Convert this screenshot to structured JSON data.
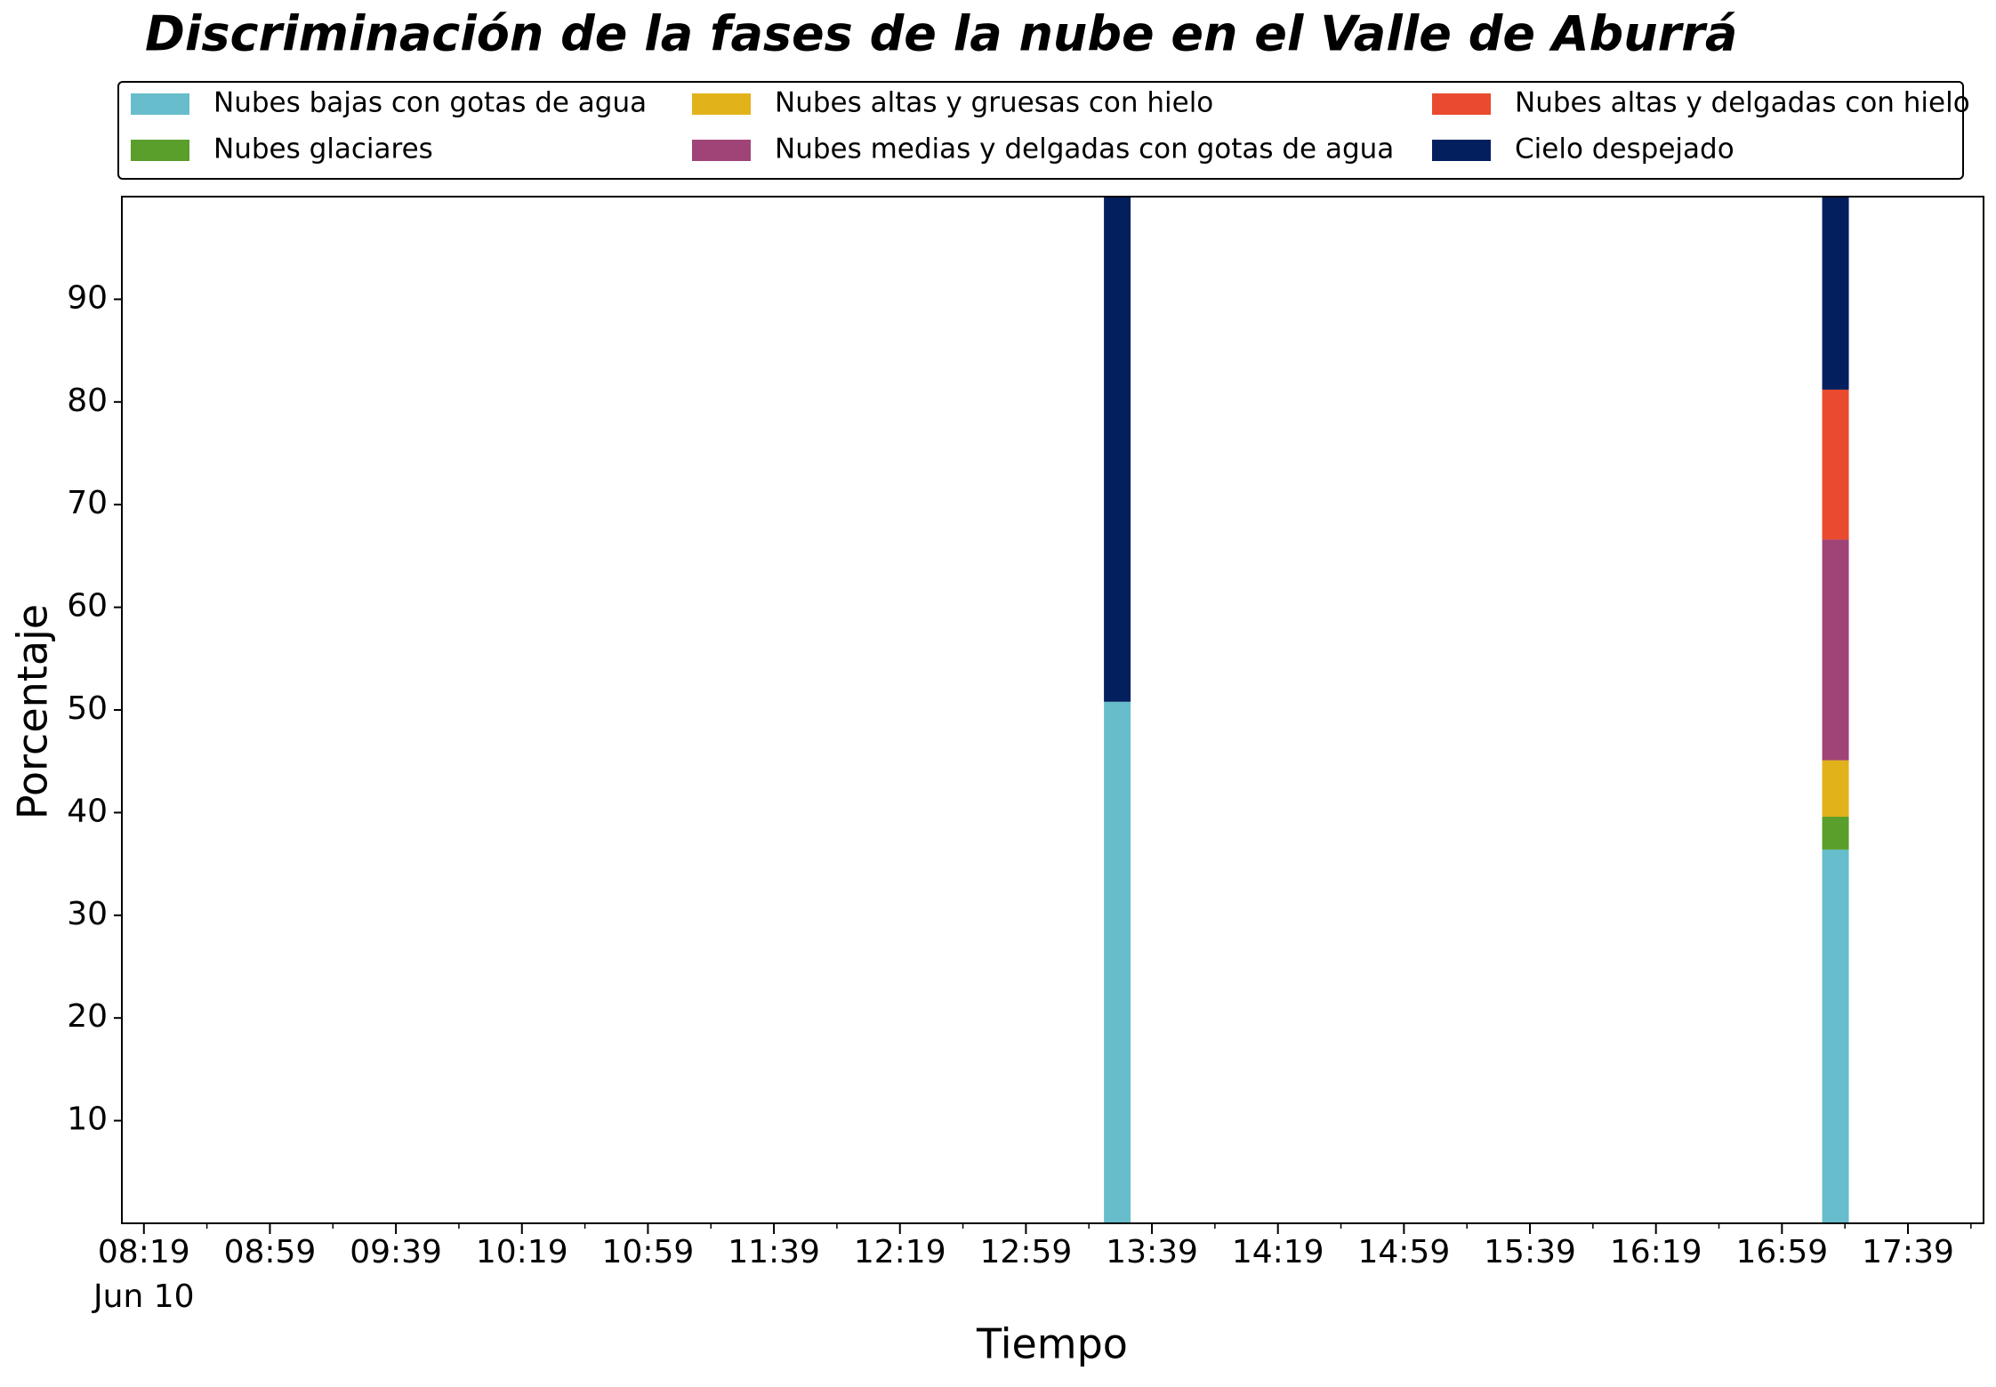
{
  "chart_data": {
    "type": "stacked_bar",
    "title": "Discriminación de la fases de la nube en el Valle de Aburrá",
    "x_label": "Tiempo",
    "y_label": "Porcentaje",
    "x_date": "Jun 10",
    "x": [
      "13:28",
      "17:16"
    ],
    "series": [
      {
        "name": "Nubes bajas con gotas de agua",
        "color": "#67bdcb",
        "values": [
          50.8,
          36.4
        ]
      },
      {
        "name": "Nubes glaciares",
        "color": "#5a9e2b",
        "values": [
          0,
          3.2
        ]
      },
      {
        "name": "Nubes altas y gruesas con hielo",
        "color": "#e2b21b",
        "values": [
          0,
          5.5
        ]
      },
      {
        "name": "Nubes medias y delgadas con gotas de agua",
        "color": "#a04478",
        "values": [
          0,
          21.5
        ]
      },
      {
        "name": "Nubes altas y delgadas con hielo",
        "color": "#ea4a2e",
        "values": [
          0,
          14.6
        ]
      },
      {
        "name": "Cielo despejado",
        "color": "#031f5e",
        "values": [
          49.2,
          18.8
        ]
      }
    ],
    "xlim": [
      "08:12",
      "18:03"
    ],
    "xticks": [
      "08:19",
      "08:59",
      "09:39",
      "10:19",
      "10:59",
      "11:39",
      "12:19",
      "12:59",
      "13:39",
      "14:19",
      "14:59",
      "15:39",
      "16:19",
      "16:59",
      "17:39"
    ],
    "xminorticks": [
      "08:39",
      "09:19",
      "09:59",
      "10:39",
      "11:19",
      "11:59",
      "12:39",
      "13:19",
      "13:59",
      "14:39",
      "15:19",
      "15:59",
      "16:39",
      "17:19",
      "17:59"
    ],
    "ylim": [
      0,
      100
    ],
    "yticks": [
      10,
      20,
      30,
      40,
      50,
      60,
      70,
      80,
      90
    ],
    "grid": false,
    "legend": "top"
  }
}
